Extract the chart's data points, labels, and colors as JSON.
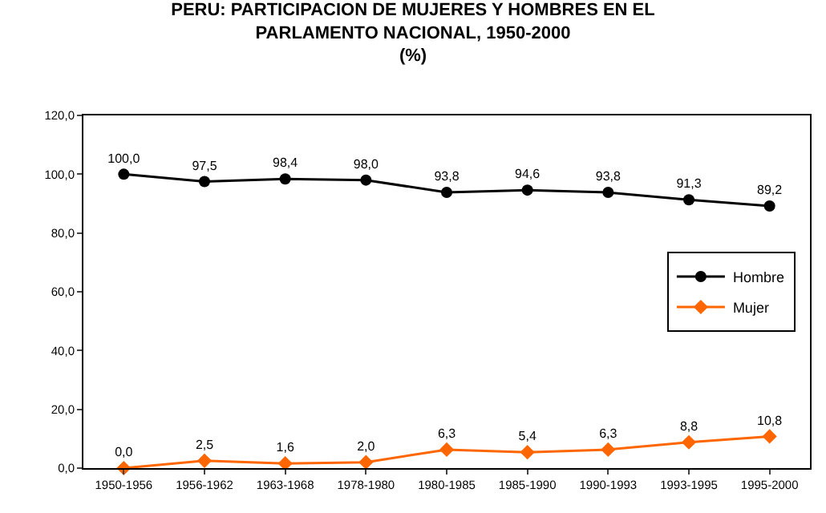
{
  "chart_data": {
    "type": "line",
    "title": "PERU: PARTICIPACION DE MUJERES Y HOMBRES EN EL\nPARLAMENTO NACIONAL, 1950-2000\n(%)",
    "categories": [
      "1950-1956",
      "1956-1962",
      "1963-1968",
      "1978-1980",
      "1980-1985",
      "1985-1990",
      "1990-1993",
      "1993-1995",
      "1995-2000"
    ],
    "series": [
      {
        "name": "Hombre",
        "color": "#000000",
        "marker": "circle",
        "values": [
          100.0,
          97.5,
          98.4,
          98.0,
          93.8,
          94.6,
          93.8,
          91.3,
          89.2
        ],
        "value_labels": [
          "100,0",
          "97,5",
          "98,4",
          "98,0",
          "93,8",
          "94,6",
          "93,8",
          "91,3",
          "89,2"
        ]
      },
      {
        "name": "Mujer",
        "color": "#ff6600",
        "marker": "diamond",
        "values": [
          0.0,
          2.5,
          1.6,
          2.0,
          6.3,
          5.4,
          6.3,
          8.8,
          10.8
        ],
        "value_labels": [
          "0,0",
          "2,5",
          "1,6",
          "2,0",
          "6,3",
          "5,4",
          "6,3",
          "8,8",
          "10,8"
        ]
      }
    ],
    "ylim": [
      0,
      120
    ],
    "yticks": [
      {
        "value": 0,
        "label": "0,0"
      },
      {
        "value": 20,
        "label": "20,0"
      },
      {
        "value": 40,
        "label": "40,0"
      },
      {
        "value": 60,
        "label": "60,0"
      },
      {
        "value": 80,
        "label": "80,0"
      },
      {
        "value": 100,
        "label": "100,0"
      },
      {
        "value": 120,
        "label": "120,0"
      }
    ],
    "grid": false,
    "legend": "right",
    "line_style": "solid"
  }
}
